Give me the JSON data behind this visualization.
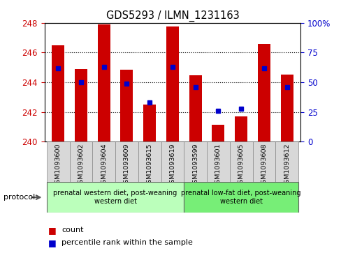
{
  "title": "GDS5293 / ILMN_1231163",
  "samples": [
    "GSM1093600",
    "GSM1093602",
    "GSM1093604",
    "GSM1093609",
    "GSM1093615",
    "GSM1093619",
    "GSM1093599",
    "GSM1093601",
    "GSM1093605",
    "GSM1093608",
    "GSM1093612"
  ],
  "counts": [
    246.5,
    244.9,
    247.9,
    244.85,
    242.5,
    247.75,
    244.45,
    241.15,
    241.7,
    246.6,
    244.5
  ],
  "percentile_ranks": [
    62,
    50,
    63,
    49,
    33,
    63,
    46,
    26,
    28,
    62,
    46
  ],
  "ylim_left": [
    240,
    248
  ],
  "ylim_right": [
    0,
    100
  ],
  "yticks_left": [
    240,
    242,
    244,
    246,
    248
  ],
  "yticks_right": [
    0,
    25,
    50,
    75,
    100
  ],
  "bar_color": "#cc0000",
  "dot_color": "#0000cc",
  "bar_bottom": 240,
  "group1_label": "prenatal western diet, post-weaning\nwestern diet",
  "group2_label": "prenatal low-fat diet, post-weaning\nwestern diet",
  "group1_count": 6,
  "group2_count": 5,
  "group1_color": "#bbffbb",
  "group2_color": "#77ee77",
  "protocol_label": "protocol",
  "legend_count_label": "count",
  "legend_pct_label": "percentile rank within the sample",
  "left_axis_color": "#cc0000",
  "right_axis_color": "#0000cc",
  "sample_box_color": "#d8d8d8"
}
